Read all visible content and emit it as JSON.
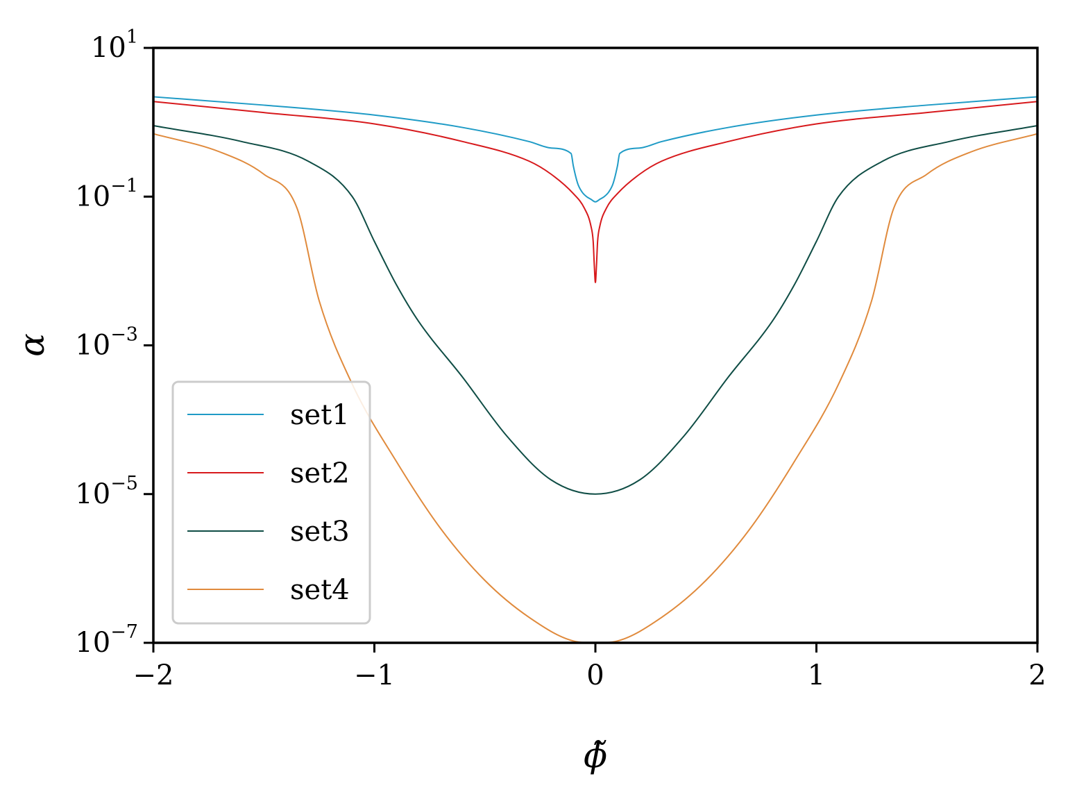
{
  "chart_data": {
    "type": "line",
    "title": "",
    "xlabel": "ϕ̃",
    "ylabel": "α",
    "xlim": [
      -2,
      2
    ],
    "ylim": [
      1e-07,
      10
    ],
    "yscale": "log",
    "grid": false,
    "legend_position": "lower-left",
    "x_ticks": [
      -2,
      -1,
      0,
      1,
      2
    ],
    "x_tick_labels": [
      "−2",
      "−1",
      "0",
      "1",
      "2"
    ],
    "y_ticks": [
      1e-07,
      1e-05,
      0.001,
      0.1,
      10
    ],
    "y_tick_labels": [
      {
        "base": "10",
        "exp": "−7"
      },
      {
        "base": "10",
        "exp": "−5"
      },
      {
        "base": "10",
        "exp": "−3"
      },
      {
        "base": "10",
        "exp": "−1"
      },
      {
        "base": "10",
        "exp": "1"
      }
    ],
    "series": [
      {
        "name": "set1",
        "color": "#1f9bc6",
        "x": [
          -2.0,
          -1.5,
          -1.0,
          -0.6,
          -0.3,
          -0.2,
          -0.11,
          -0.1,
          -0.08,
          -0.06,
          -0.04,
          -0.02,
          0.0,
          0.02,
          0.04,
          0.06,
          0.08,
          0.1,
          0.11,
          0.2,
          0.3,
          0.6,
          1.0,
          1.5,
          2.0
        ],
        "y": [
          2.2,
          1.7,
          1.25,
          0.85,
          0.55,
          0.45,
          0.38,
          0.26,
          0.15,
          0.115,
          0.1,
          0.092,
          0.085,
          0.092,
          0.1,
          0.115,
          0.15,
          0.26,
          0.38,
          0.45,
          0.55,
          0.85,
          1.25,
          1.7,
          2.2
        ]
      },
      {
        "name": "set2",
        "color": "#d7191c",
        "x": [
          -2.0,
          -1.5,
          -1.0,
          -0.6,
          -0.3,
          -0.2,
          -0.1,
          -0.05,
          -0.02,
          -0.01,
          -0.005,
          0.0,
          0.005,
          0.01,
          0.02,
          0.05,
          0.1,
          0.2,
          0.3,
          0.6,
          1.0,
          1.5,
          2.0
        ],
        "y": [
          1.9,
          1.35,
          0.95,
          0.55,
          0.3,
          0.2,
          0.11,
          0.07,
          0.04,
          0.025,
          0.012,
          0.007,
          0.012,
          0.025,
          0.04,
          0.07,
          0.11,
          0.2,
          0.3,
          0.55,
          0.95,
          1.35,
          1.9
        ]
      },
      {
        "name": "set3",
        "color": "#0f4d45",
        "x": [
          -2.0,
          -1.6,
          -1.3,
          -1.1,
          -1.0,
          -0.9,
          -0.8,
          -0.6,
          -0.4,
          -0.2,
          0.0,
          0.2,
          0.4,
          0.6,
          0.8,
          0.9,
          1.0,
          1.1,
          1.3,
          1.6,
          2.0
        ],
        "y": [
          0.9,
          0.55,
          0.3,
          0.1,
          0.025,
          0.0065,
          0.0021,
          0.00037,
          6e-05,
          1.55e-05,
          1e-05,
          1.55e-05,
          6e-05,
          0.00037,
          0.0021,
          0.0065,
          0.025,
          0.1,
          0.3,
          0.55,
          0.9
        ]
      },
      {
        "name": "set4",
        "color": "#e08a3c",
        "x": [
          -2.0,
          -1.7,
          -1.5,
          -1.35,
          -1.25,
          -1.1,
          -0.9,
          -0.7,
          -0.5,
          -0.3,
          -0.1,
          0.0,
          0.1,
          0.3,
          0.5,
          0.7,
          0.9,
          1.1,
          1.25,
          1.35,
          1.5,
          1.7,
          2.0
        ],
        "y": [
          0.7,
          0.4,
          0.2,
          0.07,
          0.004,
          0.0003,
          2.73e-05,
          3.43e-06,
          6.9e-07,
          2.2e-07,
          1.06e-07,
          1e-07,
          1.06e-07,
          2.2e-07,
          6.9e-07,
          3.43e-06,
          2.73e-05,
          0.0003,
          0.004,
          0.07,
          0.2,
          0.4,
          0.7
        ]
      }
    ]
  }
}
